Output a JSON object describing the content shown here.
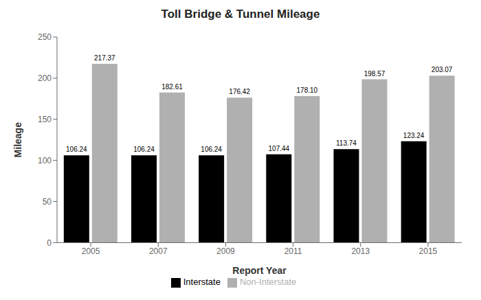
{
  "chart_data": {
    "type": "bar",
    "title": "Toll Bridge & Tunnel Mileage",
    "x_label": "Report Year",
    "y_label": "Mileage",
    "categories": [
      "2005",
      "2007",
      "2009",
      "2011",
      "2013",
      "2015"
    ],
    "series": [
      {
        "name": "Interstate",
        "color": "#000000",
        "values": [
          106.24,
          106.24,
          106.24,
          107.44,
          113.74,
          123.24
        ],
        "value_labels": [
          "106.24",
          "106.24",
          "106.24",
          "107.44",
          "113.74",
          "123.24"
        ]
      },
      {
        "name": "Non-Interstate",
        "color": "#b0b0b0",
        "values": [
          217.37,
          182.61,
          176.42,
          178.1,
          198.57,
          203.07
        ],
        "value_labels": [
          "217.37",
          "182.61",
          "176.42",
          "178.10",
          "198.57",
          "203.07"
        ]
      }
    ],
    "ylim": [
      0,
      250
    ],
    "yticks": [
      0,
      50,
      100,
      150,
      200,
      250
    ],
    "grid": false,
    "legend": "bottom",
    "data_labels": true
  }
}
